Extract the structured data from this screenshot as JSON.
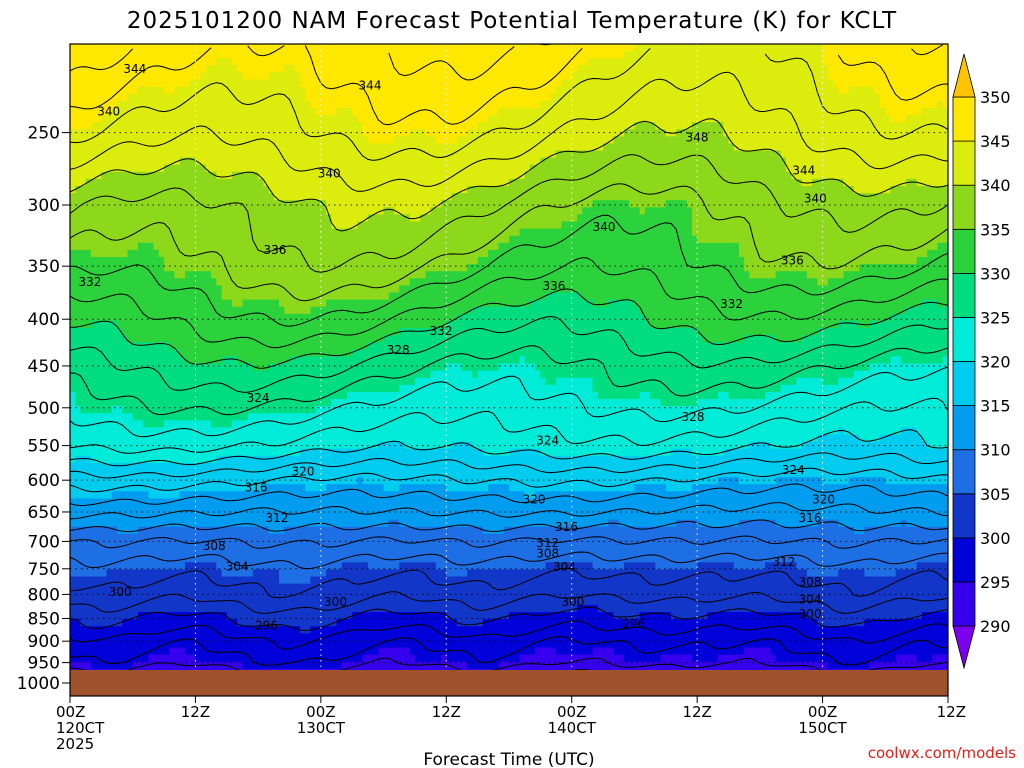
{
  "title": "2025101200 NAM Forecast Potential Temperature (K) for KCLT",
  "credit": "coolwx.com/models",
  "chart_data": {
    "type": "heatmap",
    "title": "2025101200 NAM Forecast Potential Temperature (K) for KCLT",
    "xlabel": "Forecast Time (UTC)",
    "ylabel": "",
    "x_ticks": [
      {
        "hour": 0,
        "lines": [
          "00Z",
          "120CT",
          "2025"
        ]
      },
      {
        "hour": 12,
        "lines": [
          "12Z"
        ]
      },
      {
        "hour": 24,
        "lines": [
          "00Z",
          "130CT"
        ]
      },
      {
        "hour": 36,
        "lines": [
          "12Z"
        ]
      },
      {
        "hour": 48,
        "lines": [
          "00Z",
          "140CT"
        ]
      },
      {
        "hour": 60,
        "lines": [
          "12Z"
        ]
      },
      {
        "hour": 72,
        "lines": [
          "00Z",
          "150CT"
        ]
      },
      {
        "hour": 84,
        "lines": [
          "12Z"
        ]
      }
    ],
    "xlim": [
      0,
      84
    ],
    "y_scale": "log",
    "ylim": [
      1000,
      200
    ],
    "y_ticks": [
      250,
      300,
      350,
      400,
      450,
      500,
      550,
      600,
      650,
      700,
      750,
      800,
      850,
      900,
      950,
      1000
    ],
    "grid": "dotted",
    "colorbar": {
      "levels": [
        290,
        295,
        300,
        305,
        310,
        315,
        320,
        325,
        330,
        335,
        340,
        345,
        350
      ],
      "labels": [
        "290",
        "295",
        "300",
        "305",
        "310",
        "315",
        "320",
        "325",
        "330",
        "335",
        "340",
        "345",
        "350"
      ],
      "colors": [
        "#7a00ee",
        "#3600ee",
        "#0000d8",
        "#1236c8",
        "#1e6ee4",
        "#009cf0",
        "#00ccf0",
        "#00ecd8",
        "#00dc80",
        "#2cd23c",
        "#8ed81c",
        "#dcec0c",
        "#ffe800",
        "#ffc400"
      ]
    },
    "contour_labels": [
      {
        "text": "344",
        "hour": 6.2,
        "p": 213
      },
      {
        "text": "344",
        "hour": 28.7,
        "p": 222
      },
      {
        "text": "340",
        "hour": 3.7,
        "p": 237
      },
      {
        "text": "340",
        "hour": 24.8,
        "p": 277
      },
      {
        "text": "348",
        "hour": 60.0,
        "p": 253
      },
      {
        "text": "344",
        "hour": 70.2,
        "p": 275
      },
      {
        "text": "340",
        "hour": 71.3,
        "p": 295
      },
      {
        "text": "340",
        "hour": 51.1,
        "p": 317
      },
      {
        "text": "336",
        "hour": 19.6,
        "p": 336
      },
      {
        "text": "336",
        "hour": 69.1,
        "p": 345
      },
      {
        "text": "336",
        "hour": 46.3,
        "p": 368
      },
      {
        "text": "332",
        "hour": 1.9,
        "p": 364
      },
      {
        "text": "332",
        "hour": 63.3,
        "p": 385
      },
      {
        "text": "332",
        "hour": 35.5,
        "p": 412
      },
      {
        "text": "328",
        "hour": 31.4,
        "p": 432
      },
      {
        "text": "324",
        "hour": 18.0,
        "p": 488
      },
      {
        "text": "328",
        "hour": 59.6,
        "p": 512
      },
      {
        "text": "324",
        "hour": 45.7,
        "p": 543
      },
      {
        "text": "324",
        "hour": 69.2,
        "p": 585
      },
      {
        "text": "320",
        "hour": 22.3,
        "p": 587
      },
      {
        "text": "316",
        "hour": 17.8,
        "p": 611
      },
      {
        "text": "320",
        "hour": 44.4,
        "p": 630
      },
      {
        "text": "320",
        "hour": 72.1,
        "p": 630
      },
      {
        "text": "312",
        "hour": 19.8,
        "p": 660
      },
      {
        "text": "316",
        "hour": 47.5,
        "p": 675
      },
      {
        "text": "316",
        "hour": 70.8,
        "p": 660
      },
      {
        "text": "312",
        "hour": 45.7,
        "p": 703
      },
      {
        "text": "308",
        "hour": 13.8,
        "p": 708
      },
      {
        "text": "308",
        "hour": 45.7,
        "p": 722
      },
      {
        "text": "312",
        "hour": 68.3,
        "p": 737
      },
      {
        "text": "304",
        "hour": 16.0,
        "p": 746
      },
      {
        "text": "304",
        "hour": 47.3,
        "p": 747
      },
      {
        "text": "308",
        "hour": 70.8,
        "p": 775
      },
      {
        "text": "300",
        "hour": 4.8,
        "p": 795
      },
      {
        "text": "304",
        "hour": 70.8,
        "p": 810
      },
      {
        "text": "300",
        "hour": 25.4,
        "p": 815
      },
      {
        "text": "300",
        "hour": 48.1,
        "p": 815
      },
      {
        "text": "300",
        "hour": 70.8,
        "p": 840
      },
      {
        "text": "296",
        "hour": 18.8,
        "p": 865
      },
      {
        "text": "296",
        "hour": 53.9,
        "p": 862
      }
    ]
  }
}
